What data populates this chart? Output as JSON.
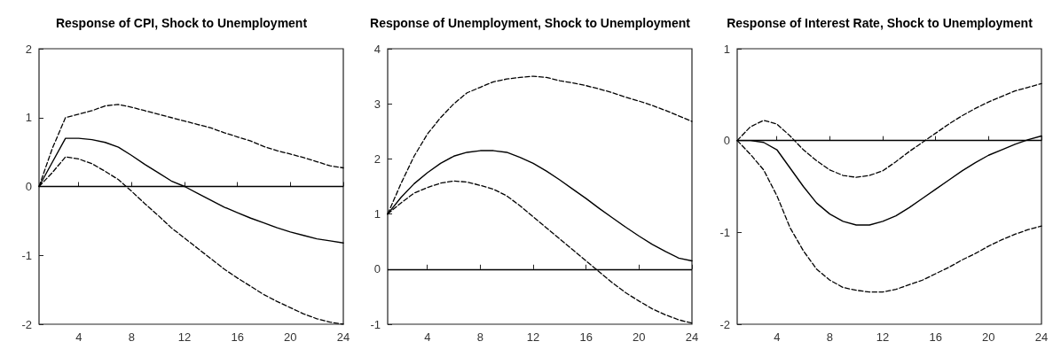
{
  "chart_data": [
    {
      "type": "line",
      "title": "Response of CPI, Shock to Unemployment",
      "x": [
        1,
        2,
        3,
        4,
        5,
        6,
        7,
        8,
        9,
        10,
        11,
        12,
        13,
        14,
        15,
        16,
        17,
        18,
        19,
        20,
        21,
        22,
        23,
        24
      ],
      "xlim": [
        1,
        24
      ],
      "xticks": [
        4,
        8,
        12,
        16,
        20,
        24
      ],
      "ylim": [
        -2,
        2
      ],
      "yticks": [
        -2,
        -1,
        0,
        1,
        2
      ],
      "grid": false,
      "marker": "none",
      "ref_lines": [
        {
          "axis": "y",
          "value": 0,
          "color": "#000000",
          "line_style": "solid"
        }
      ],
      "series": [
        {
          "color": "#000000",
          "line_style": "solid",
          "values": [
            0,
            0.35,
            0.7,
            0.7,
            0.68,
            0.64,
            0.57,
            0.45,
            0.32,
            0.2,
            0.08,
            0,
            -0.1,
            -0.2,
            -0.3,
            -0.38,
            -0.46,
            -0.53,
            -0.6,
            -0.66,
            -0.71,
            -0.76,
            -0.79,
            -0.82
          ]
        },
        {
          "color": "#000000",
          "line_style": "dashed",
          "values": [
            0,
            0.55,
            1.0,
            1.05,
            1.1,
            1.17,
            1.19,
            1.15,
            1.1,
            1.05,
            1.0,
            0.95,
            0.9,
            0.85,
            0.78,
            0.72,
            0.66,
            0.58,
            0.52,
            0.47,
            0.42,
            0.36,
            0.3,
            0.27
          ]
        },
        {
          "color": "#000000",
          "line_style": "dashed",
          "values": [
            0,
            0.2,
            0.43,
            0.4,
            0.33,
            0.22,
            0.1,
            -0.07,
            -0.25,
            -0.42,
            -0.6,
            -0.75,
            -0.9,
            -1.05,
            -1.2,
            -1.33,
            -1.45,
            -1.57,
            -1.67,
            -1.76,
            -1.85,
            -1.92,
            -1.97,
            -2.0
          ]
        }
      ]
    },
    {
      "type": "line",
      "title": "Response of Unemployment, Shock to Unemployment",
      "x": [
        1,
        2,
        3,
        4,
        5,
        6,
        7,
        8,
        9,
        10,
        11,
        12,
        13,
        14,
        15,
        16,
        17,
        18,
        19,
        20,
        21,
        22,
        23,
        24
      ],
      "xlim": [
        1,
        24
      ],
      "xticks": [
        4,
        8,
        12,
        16,
        20,
        24
      ],
      "ylim": [
        -1,
        4
      ],
      "yticks": [
        -1,
        0,
        1,
        2,
        3,
        4
      ],
      "grid": false,
      "marker": "none",
      "ref_lines": [
        {
          "axis": "y",
          "value": 0,
          "color": "#000000",
          "line_style": "solid"
        }
      ],
      "series": [
        {
          "color": "#000000",
          "line_style": "solid",
          "values": [
            1.0,
            1.3,
            1.55,
            1.75,
            1.92,
            2.05,
            2.12,
            2.15,
            2.15,
            2.12,
            2.03,
            1.92,
            1.78,
            1.62,
            1.45,
            1.28,
            1.1,
            0.93,
            0.76,
            0.6,
            0.45,
            0.32,
            0.2,
            0.15
          ]
        },
        {
          "color": "#000000",
          "line_style": "dashed",
          "values": [
            1.0,
            1.55,
            2.05,
            2.45,
            2.75,
            3.0,
            3.2,
            3.3,
            3.4,
            3.45,
            3.48,
            3.5,
            3.48,
            3.42,
            3.38,
            3.33,
            3.27,
            3.2,
            3.12,
            3.05,
            2.97,
            2.88,
            2.78,
            2.68
          ]
        },
        {
          "color": "#000000",
          "line_style": "dashed",
          "values": [
            1.0,
            1.2,
            1.38,
            1.48,
            1.56,
            1.6,
            1.58,
            1.52,
            1.45,
            1.33,
            1.15,
            0.95,
            0.75,
            0.55,
            0.35,
            0.15,
            -0.05,
            -0.25,
            -0.43,
            -0.58,
            -0.72,
            -0.83,
            -0.92,
            -0.98
          ]
        }
      ]
    },
    {
      "type": "line",
      "title": "Response of Interest Rate, Shock to Unemployment",
      "x": [
        1,
        2,
        3,
        4,
        5,
        6,
        7,
        8,
        9,
        10,
        11,
        12,
        13,
        14,
        15,
        16,
        17,
        18,
        19,
        20,
        21,
        22,
        23,
        24
      ],
      "xlim": [
        1,
        24
      ],
      "xticks": [
        4,
        8,
        12,
        16,
        20,
        24
      ],
      "ylim": [
        -2,
        1
      ],
      "yticks": [
        -2,
        -1,
        0,
        1
      ],
      "grid": false,
      "marker": "none",
      "ref_lines": [
        {
          "axis": "y",
          "value": 0,
          "color": "#000000",
          "line_style": "solid"
        }
      ],
      "series": [
        {
          "color": "#000000",
          "line_style": "solid",
          "values": [
            0,
            0,
            -0.02,
            -0.1,
            -0.3,
            -0.5,
            -0.68,
            -0.8,
            -0.88,
            -0.92,
            -0.92,
            -0.88,
            -0.82,
            -0.73,
            -0.63,
            -0.53,
            -0.43,
            -0.33,
            -0.24,
            -0.16,
            -0.1,
            -0.04,
            0.01,
            0.05
          ]
        },
        {
          "color": "#000000",
          "line_style": "dashed",
          "values": [
            0,
            0.15,
            0.22,
            0.18,
            0.05,
            -0.1,
            -0.22,
            -0.32,
            -0.38,
            -0.4,
            -0.38,
            -0.33,
            -0.23,
            -0.12,
            -0.02,
            0.08,
            0.18,
            0.27,
            0.35,
            0.42,
            0.48,
            0.54,
            0.58,
            0.62
          ]
        },
        {
          "color": "#000000",
          "line_style": "dashed",
          "values": [
            0,
            -0.15,
            -0.32,
            -0.6,
            -0.95,
            -1.2,
            -1.4,
            -1.52,
            -1.6,
            -1.63,
            -1.65,
            -1.65,
            -1.62,
            -1.57,
            -1.52,
            -1.45,
            -1.38,
            -1.3,
            -1.23,
            -1.15,
            -1.08,
            -1.02,
            -0.97,
            -0.93
          ]
        }
      ]
    }
  ]
}
